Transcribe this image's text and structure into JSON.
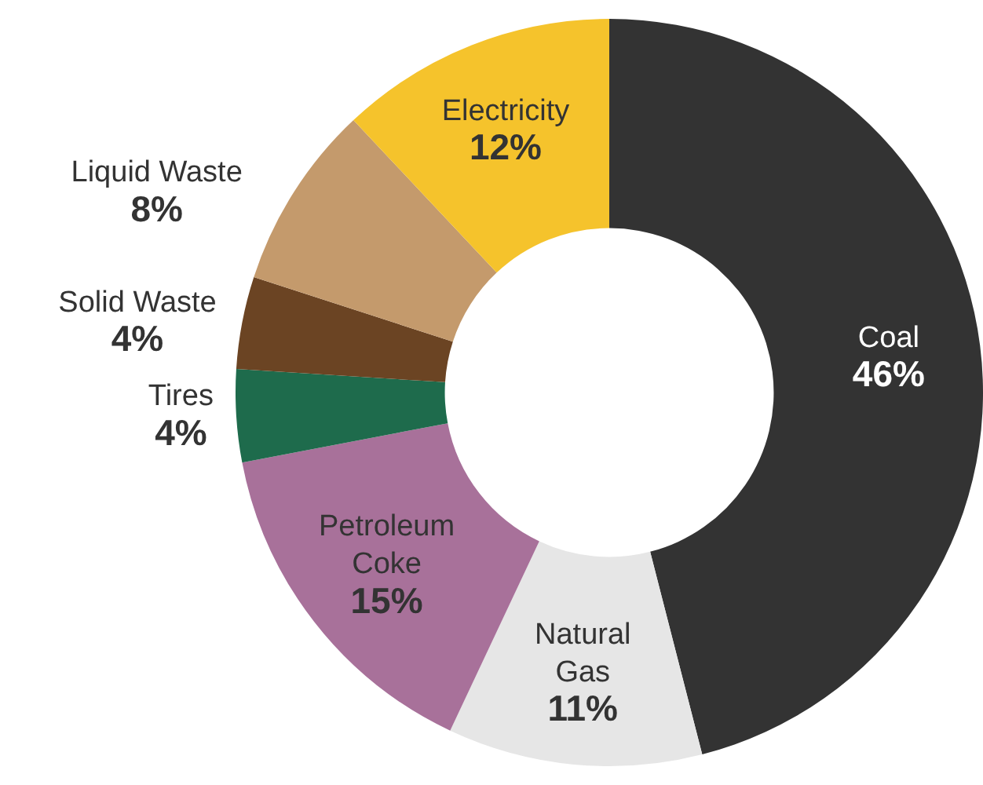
{
  "chart_data": {
    "type": "donut",
    "categories": [
      "Coal",
      "Natural Gas",
      "Petroleum Coke",
      "Tires",
      "Solid Waste",
      "Liquid Waste",
      "Electricity"
    ],
    "values": [
      46,
      11,
      15,
      4,
      4,
      8,
      12
    ],
    "colors": [
      "#333333",
      "#e6e6e6",
      "#a8719a",
      "#1e6b4c",
      "#6b4423",
      "#c49a6c",
      "#f5c32c"
    ],
    "value_labels": [
      "46%",
      "11%",
      "15%",
      "4%",
      "4%",
      "8%",
      "12%"
    ],
    "legend": false
  }
}
